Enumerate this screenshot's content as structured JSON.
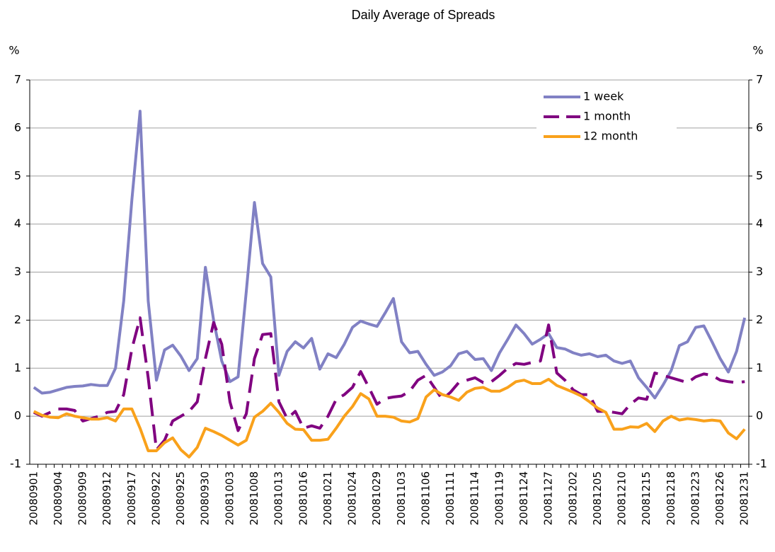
{
  "chart_data": {
    "type": "line",
    "title": "Daily Average of Spreads",
    "y_label": "%",
    "y2_label": "%",
    "categories": [
      "20080901",
      null,
      null,
      "20080904",
      null,
      null,
      "20080909",
      null,
      null,
      "20080912",
      null,
      null,
      "20080917",
      null,
      null,
      "20080922",
      null,
      null,
      "20080925",
      null,
      null,
      "20080930",
      null,
      null,
      "20081003",
      null,
      null,
      "20081008",
      null,
      null,
      "20081013",
      null,
      null,
      "20081016",
      null,
      null,
      "20081021",
      null,
      null,
      "20081024",
      null,
      null,
      "20081029",
      null,
      null,
      "20081103",
      null,
      null,
      "20081106",
      null,
      null,
      "20081111",
      null,
      null,
      "20081114",
      null,
      null,
      "20081119",
      null,
      null,
      "20081124",
      null,
      null,
      "20081127",
      null,
      null,
      "20081202",
      null,
      null,
      "20081205",
      null,
      null,
      "20081210",
      null,
      null,
      "20081215",
      null,
      null,
      "20081218",
      null,
      null,
      "20081223",
      null,
      null,
      "20081226",
      null,
      null,
      "20081231"
    ],
    "series": [
      {
        "name": "1 week",
        "color": "#8181c4",
        "line_style": "solid",
        "values": [
          0.6,
          0.48,
          0.5,
          0.55,
          0.6,
          0.62,
          0.63,
          0.66,
          0.64,
          0.64,
          1.0,
          2.4,
          4.5,
          6.35,
          2.4,
          0.75,
          1.38,
          1.48,
          1.25,
          0.95,
          1.2,
          3.1,
          2.0,
          1.15,
          0.72,
          0.82,
          2.6,
          4.45,
          3.18,
          2.9,
          0.85,
          1.35,
          1.55,
          1.42,
          1.62,
          0.98,
          1.3,
          1.22,
          1.5,
          1.85,
          1.98,
          1.92,
          1.87,
          2.15,
          2.45,
          1.55,
          1.32,
          1.35,
          1.08,
          0.85,
          0.92,
          1.05,
          1.3,
          1.35,
          1.18,
          1.2,
          0.95,
          1.32,
          1.6,
          1.9,
          1.72,
          1.5,
          1.6,
          1.72,
          1.43,
          1.4,
          1.32,
          1.27,
          1.3,
          1.24,
          1.27,
          1.15,
          1.1,
          1.15,
          0.8,
          0.6,
          0.38,
          0.65,
          0.95,
          1.47,
          1.55,
          1.85,
          1.88,
          1.55,
          1.2,
          0.92,
          1.35,
          2.05
        ]
      },
      {
        "name": "1 month",
        "color": "#800080",
        "line_style": "dashed",
        "values": [
          0.08,
          0.0,
          0.08,
          0.15,
          0.15,
          0.12,
          -0.1,
          -0.05,
          0.0,
          0.08,
          0.1,
          0.45,
          1.4,
          2.05,
          0.8,
          -0.7,
          -0.5,
          -0.1,
          0.0,
          0.1,
          0.3,
          1.2,
          1.95,
          1.5,
          0.3,
          -0.3,
          0.05,
          1.2,
          1.7,
          1.72,
          0.3,
          -0.05,
          0.1,
          -0.25,
          -0.2,
          -0.25,
          0.0,
          0.35,
          0.45,
          0.6,
          0.93,
          0.6,
          0.25,
          0.37,
          0.4,
          0.42,
          0.52,
          0.75,
          0.85,
          0.6,
          0.35,
          0.5,
          0.7,
          0.75,
          0.8,
          0.7,
          0.72,
          0.85,
          1.0,
          1.1,
          1.08,
          1.12,
          1.15,
          1.9,
          0.9,
          0.75,
          0.55,
          0.45,
          0.45,
          0.1,
          0.1,
          0.08,
          0.05,
          0.25,
          0.38,
          0.35,
          0.9,
          0.85,
          0.8,
          0.75,
          0.7,
          0.82,
          0.88,
          0.85,
          0.75,
          0.72,
          0.7,
          0.72
        ]
      },
      {
        "name": "12 month",
        "color": "#f9a11b",
        "line_style": "solid",
        "values": [
          0.1,
          0.02,
          -0.02,
          -0.03,
          0.05,
          0.0,
          -0.03,
          -0.06,
          -0.06,
          -0.03,
          -0.1,
          0.15,
          0.15,
          -0.25,
          -0.72,
          -0.72,
          -0.55,
          -0.45,
          -0.7,
          -0.85,
          -0.65,
          -0.25,
          -0.32,
          -0.4,
          -0.5,
          -0.6,
          -0.5,
          -0.02,
          0.1,
          0.27,
          0.08,
          -0.15,
          -0.27,
          -0.28,
          -0.5,
          -0.5,
          -0.48,
          -0.25,
          0.0,
          0.2,
          0.47,
          0.36,
          0.0,
          0.0,
          -0.02,
          -0.1,
          -0.12,
          -0.05,
          0.4,
          0.55,
          0.45,
          0.4,
          0.33,
          0.5,
          0.58,
          0.6,
          0.52,
          0.52,
          0.6,
          0.72,
          0.75,
          0.68,
          0.68,
          0.77,
          0.64,
          0.57,
          0.5,
          0.42,
          0.3,
          0.17,
          0.08,
          -0.27,
          -0.27,
          -0.22,
          -0.23,
          -0.15,
          -0.32,
          -0.1,
          0.0,
          -0.08,
          -0.05,
          -0.07,
          -0.1,
          -0.08,
          -0.1,
          -0.35,
          -0.47,
          -0.27
        ]
      }
    ],
    "ylim": [
      -1,
      7
    ],
    "yticks": [
      -1,
      0,
      1,
      2,
      3,
      4,
      5,
      6,
      7
    ],
    "y2lim": [
      -1,
      7
    ],
    "y2ticks": [
      -1,
      0,
      1,
      2,
      3,
      4,
      5,
      6,
      7
    ],
    "grid": true,
    "legend": "upper right"
  }
}
